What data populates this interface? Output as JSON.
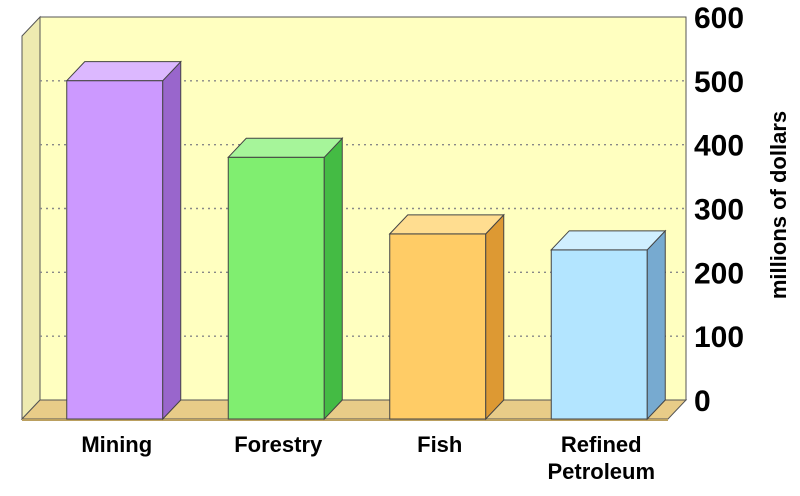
{
  "chart_data": {
    "type": "bar",
    "title": "",
    "xlabel": "",
    "ylabel": "millions of dollars",
    "categories": [
      "Mining",
      "Forestry",
      "Fish",
      "Refined\nPetroleum"
    ],
    "values": [
      530,
      410,
      290,
      265
    ],
    "ylim": [
      0,
      600
    ],
    "yticks": [
      0,
      100,
      200,
      300,
      400,
      500,
      600
    ],
    "grid": true,
    "legend": "none",
    "colors": {
      "bars": [
        "#cc99ff",
        "#80ee70",
        "#ffcc66",
        "#b3e5ff"
      ],
      "bar_tops": [
        "#dcb8ff",
        "#a6f59a",
        "#ffdd90",
        "#d0efff"
      ],
      "bar_sides": [
        "#9966cc",
        "#44bb44",
        "#dd9933",
        "#77aad0"
      ],
      "plot_background": "#ffffc0",
      "floor": "#e8cc88"
    }
  }
}
